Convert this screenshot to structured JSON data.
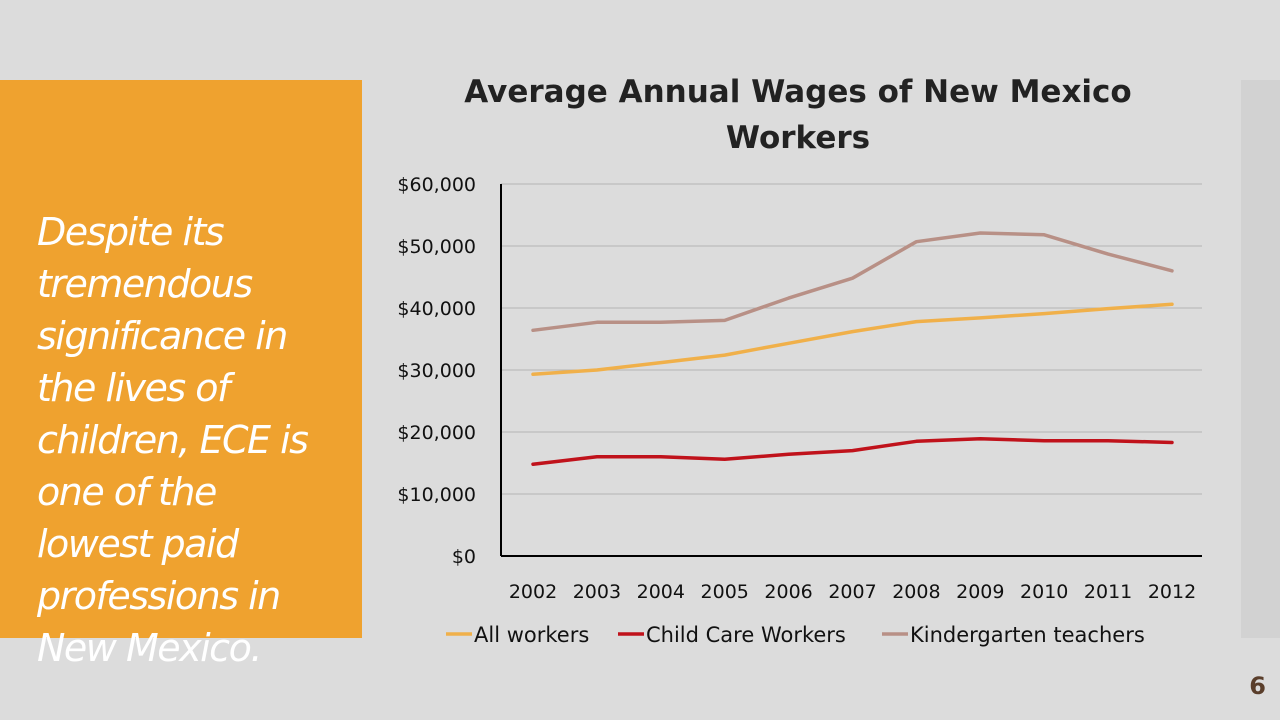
{
  "side_panel": {
    "text": "Despite its tremendous significance in the lives of children, ECE is one of the lowest paid professions in New Mexico."
  },
  "slide_number": "6",
  "colors": {
    "panel": "#efa22f",
    "all_workers": "#f0b04a",
    "child_care_workers": "#c0121b",
    "kindergarten_teachers": "#b89086"
  },
  "chart_data": {
    "type": "line",
    "title_lines": [
      "Average Annual Wages of New Mexico",
      "Workers"
    ],
    "x": [
      "2002",
      "2003",
      "2004",
      "2005",
      "2006",
      "2007",
      "2008",
      "2009",
      "2010",
      "2011",
      "2012"
    ],
    "y_ticks": [
      "$0",
      "$10,000",
      "$20,000",
      "$30,000",
      "$40,000",
      "$50,000",
      "$60,000"
    ],
    "ylim": [
      0,
      60000
    ],
    "grid": true,
    "legend_position": "bottom",
    "series": [
      {
        "name": "All workers",
        "color_key": "all_workers",
        "values": [
          29300,
          30000,
          31200,
          32400,
          34300,
          36200,
          37800,
          38400,
          39100,
          39900,
          40600
        ]
      },
      {
        "name": "Child Care Workers",
        "color_key": "child_care_workers",
        "values": [
          14800,
          16000,
          16000,
          15600,
          16400,
          17000,
          18500,
          18900,
          18600,
          18600,
          18300
        ]
      },
      {
        "name": "Kindergarten teachers",
        "color_key": "kindergarten_teachers",
        "values": [
          36400,
          37700,
          37700,
          38000,
          41600,
          44800,
          50700,
          52100,
          51800,
          48700,
          46000
        ]
      }
    ]
  }
}
